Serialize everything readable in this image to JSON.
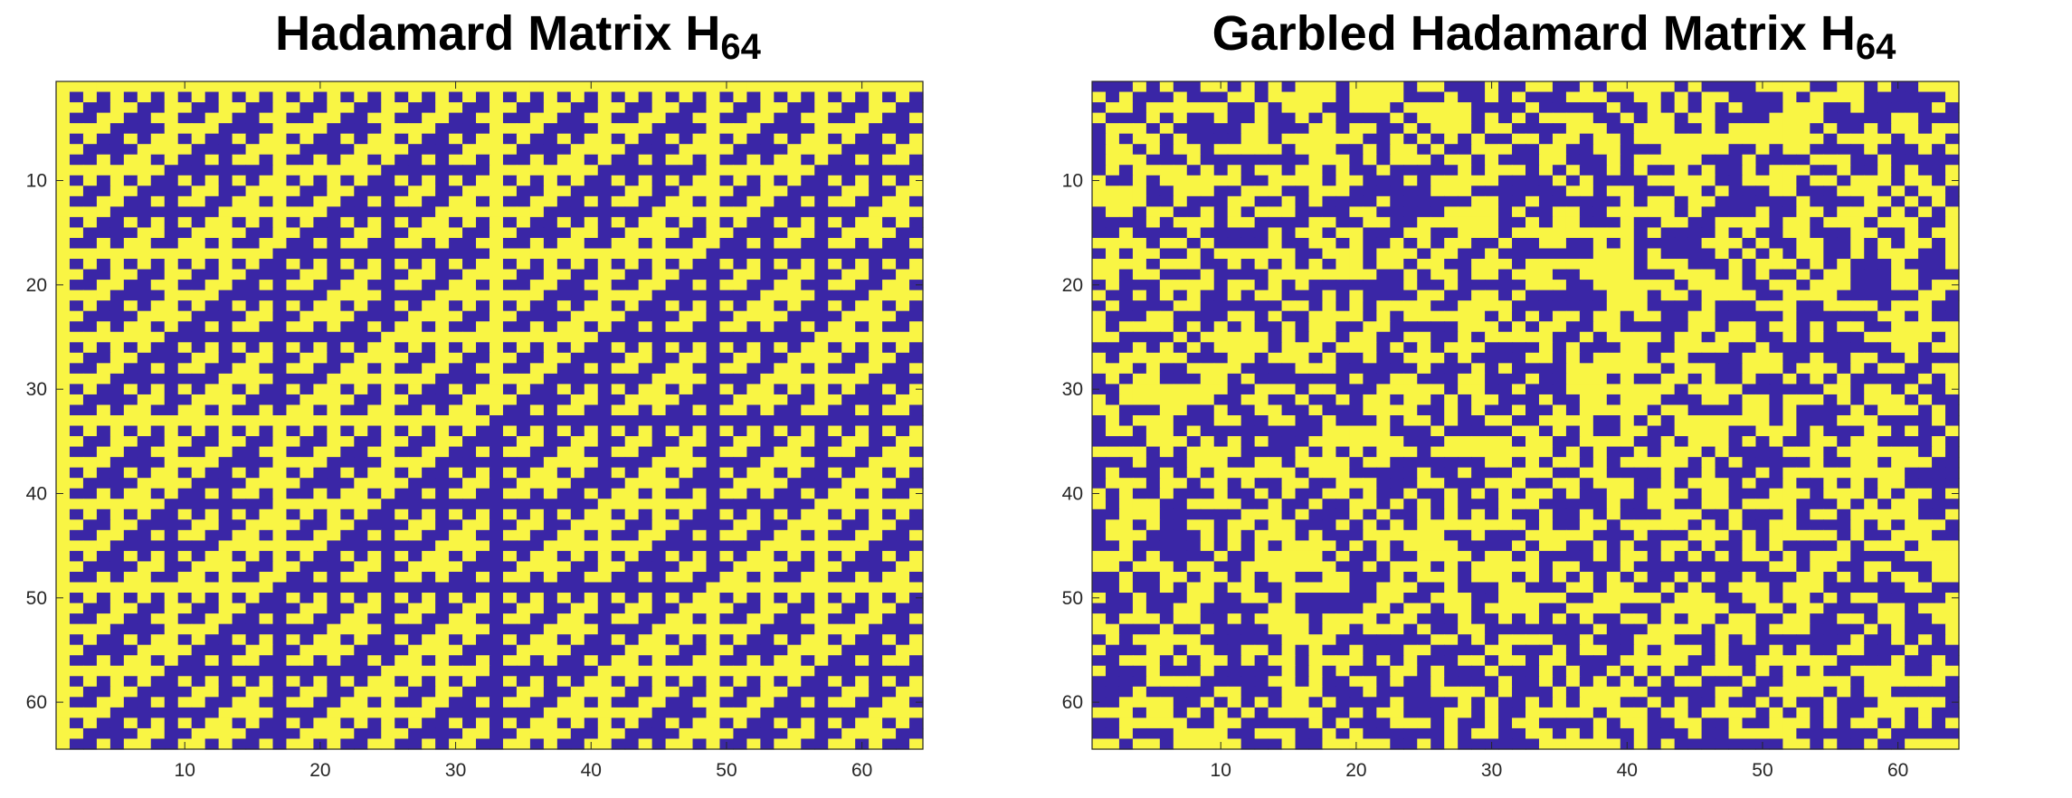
{
  "colors": {
    "positive": "#F9F544",
    "negative": "#3A26A6",
    "axis": "#262626"
  },
  "left": {
    "title": "Hadamard Matrix H",
    "title_sub": "64",
    "ticks": [
      "10",
      "20",
      "30",
      "40",
      "50",
      "60"
    ]
  },
  "right": {
    "title": "Garbled Hadamard Matrix H",
    "title_sub": "64",
    "ticks": [
      "10",
      "20",
      "30",
      "40",
      "50",
      "60"
    ]
  },
  "chart_data": [
    {
      "type": "heatmap",
      "title": "Hadamard Matrix H64",
      "size": [
        64,
        64
      ],
      "values_rule": "Sylvester-ordered Hadamard matrix: H[i][j] = (-1)^popcount((i-1) AND (j-1)) for i,j = 1..64; +1 shown yellow, -1 shown blue",
      "xlim": [
        0.5,
        64.5
      ],
      "ylim": [
        0.5,
        64.5
      ],
      "x_ticks": [
        10,
        20,
        30,
        40,
        50,
        60
      ],
      "y_ticks": [
        10,
        20,
        30,
        40,
        50,
        60
      ],
      "colormap": {
        "1": "#F9F544",
        "-1": "#3A26A6"
      }
    },
    {
      "type": "heatmap",
      "title": "Garbled Hadamard Matrix H64",
      "size": [
        64,
        64
      ],
      "values_rule": "Rows and columns of H64 randomly permuted with random sign flips (entries still +1 / -1)",
      "xlim": [
        0.5,
        64.5
      ],
      "ylim": [
        0.5,
        64.5
      ],
      "x_ticks": [
        10,
        20,
        30,
        40,
        50,
        60
      ],
      "y_ticks": [
        10,
        20,
        30,
        40,
        50,
        60
      ],
      "colormap": {
        "1": "#F9F544",
        "-1": "#3A26A6"
      }
    }
  ]
}
